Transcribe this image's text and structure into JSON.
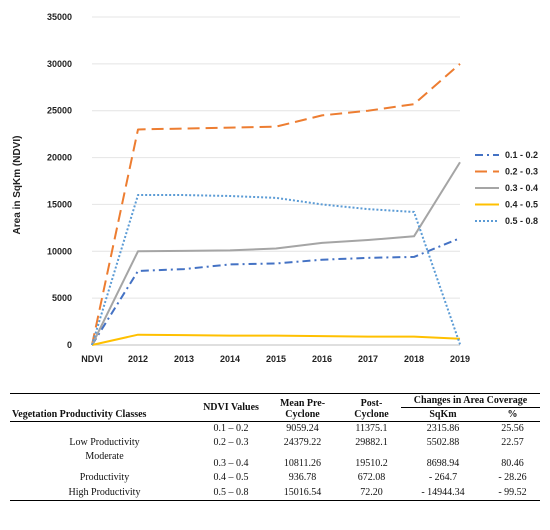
{
  "chart_data": {
    "type": "line",
    "categories": [
      "NDVI",
      "2012",
      "2013",
      "2014",
      "2015",
      "2016",
      "2017",
      "2018",
      "2019"
    ],
    "ylabel": "Area in SqKm (NDVI)",
    "ylim": [
      0,
      35000
    ],
    "yticks": [
      0,
      5000,
      10000,
      15000,
      20000,
      25000,
      30000,
      35000
    ],
    "legend_position": "right",
    "series": [
      {
        "name": "0.1 - 0.2",
        "color": "#4472C4",
        "dash": "dash-dot",
        "values": [
          0,
          7900,
          8100,
          8600,
          8700,
          9100,
          9300,
          9400,
          11400
        ]
      },
      {
        "name": "0.2 - 0.3",
        "color": "#ED7D31",
        "dash": "long-dash",
        "values": [
          0,
          23000,
          23100,
          23200,
          23300,
          24500,
          25000,
          25700,
          30000
        ]
      },
      {
        "name": "0.3 - 0.4",
        "color": "#A5A5A5",
        "dash": "solid",
        "values": [
          0,
          10000,
          10050,
          10100,
          10300,
          10900,
          11200,
          11600,
          19500
        ]
      },
      {
        "name": "0.4 - 0.5",
        "color": "#FFC000",
        "dash": "solid",
        "values": [
          0,
          1100,
          1050,
          1000,
          1000,
          950,
          900,
          900,
          670
        ]
      },
      {
        "name": "0.5 - 0.8",
        "color": "#5B9BD5",
        "dash": "dotted",
        "values": [
          0,
          16000,
          16000,
          15900,
          15700,
          15000,
          14500,
          14200,
          70
        ]
      }
    ]
  },
  "table": {
    "headers": {
      "classes": "Vegetation Productivity Classes",
      "ndvi": "NDVI Values",
      "mean_pre": "Mean Pre-Cyclone",
      "post": "Post-Cyclone",
      "changes": "Changes in Area Coverage",
      "sqkm": "SqKm",
      "pct": "%"
    },
    "rows": [
      {
        "class": "",
        "ndvi": "0.1 – 0.2",
        "pre": "9059.24",
        "post": "11375.1",
        "sqkm": "2315.86",
        "pct": "25.56"
      },
      {
        "class": "Low Productivity",
        "ndvi": "0.2 – 0.3",
        "pre": "24379.22",
        "post": "29882.1",
        "sqkm": "5502.88",
        "pct": "22.57"
      },
      {
        "class": "Moderate",
        "ndvi": "0.3 – 0.4",
        "pre": "10811.26",
        "post": "19510.2",
        "sqkm": "8698.94",
        "pct": "80.46"
      },
      {
        "class": "Productivity",
        "ndvi": "0.4 – 0.5",
        "pre": "936.78",
        "post": "672.08",
        "sqkm": "- 264.7",
        "pct": "- 28.26"
      },
      {
        "class": "High Productivity",
        "ndvi": "0.5 – 0.8",
        "pre": "15016.54",
        "post": "72.20",
        "sqkm": "- 14944.34",
        "pct": "- 99.52"
      }
    ]
  }
}
